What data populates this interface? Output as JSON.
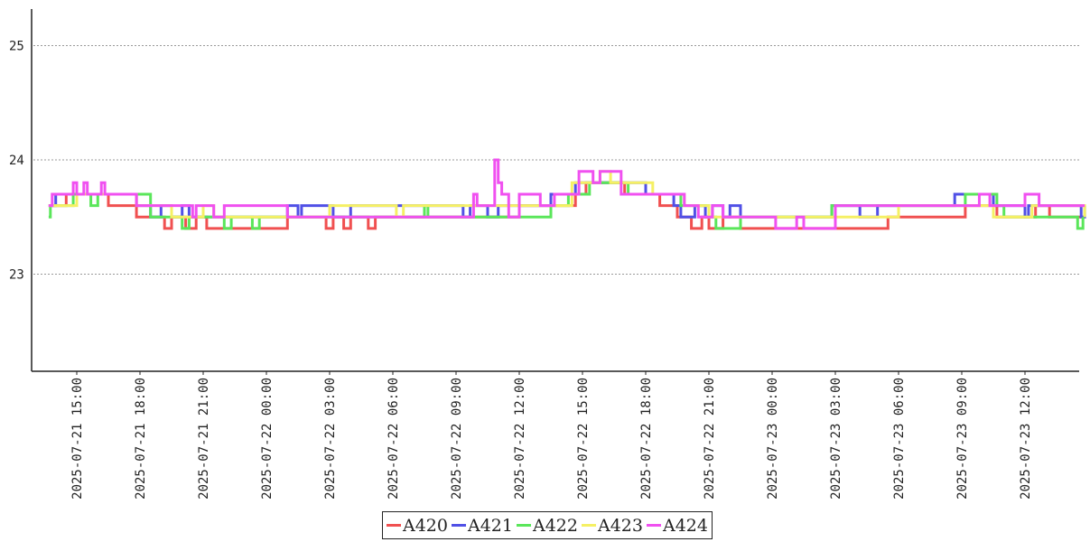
{
  "chart_data": {
    "type": "line",
    "title": "",
    "xlabel": "",
    "ylabel": "",
    "x_range": [
      "2025-07-21 13:40",
      "2025-07-23 14:55"
    ],
    "ylim": [
      22.15,
      25.3
    ],
    "y_ticks": [
      23,
      24,
      25
    ],
    "y_tick_labels": [
      "23",
      "24",
      "25"
    ],
    "x_ticks": [
      "2025-07-21 15:00",
      "2025-07-21 18:00",
      "2025-07-21 21:00",
      "2025-07-22 00:00",
      "2025-07-22 03:00",
      "2025-07-22 06:00",
      "2025-07-22 09:00",
      "2025-07-22 12:00",
      "2025-07-22 15:00",
      "2025-07-22 18:00",
      "2025-07-22 21:00",
      "2025-07-23 00:00",
      "2025-07-23 03:00",
      "2025-07-23 06:00",
      "2025-07-23 09:00",
      "2025-07-23 12:00"
    ],
    "x_tick_labels": [
      "2025-07-21  15:00",
      "2025-07-21  18:00",
      "2025-07-21  21:00",
      "2025-07-22  00:00",
      "2025-07-22  03:00",
      "2025-07-22  06:00",
      "2025-07-22  09:00",
      "2025-07-22  12:00",
      "2025-07-22  15:00",
      "2025-07-22  18:00",
      "2025-07-22  21:00",
      "2025-07-23  00:00",
      "2025-07-23  03:00",
      "2025-07-23  06:00",
      "2025-07-23  09:00",
      "2025-07-23  12:00"
    ],
    "grid": "horizontal dotted",
    "legend_position": "bottom-center",
    "series": [
      {
        "name": "A420",
        "color": "#f05050",
        "points": [
          [
            "2025-07-21 13:40",
            23.6
          ],
          [
            "2025-07-21 14:30",
            23.7
          ],
          [
            "2025-07-21 16:30",
            23.6
          ],
          [
            "2025-07-21 17:50",
            23.5
          ],
          [
            "2025-07-21 19:10",
            23.4
          ],
          [
            "2025-07-21 19:30",
            23.5
          ],
          [
            "2025-07-21 20:10",
            23.4
          ],
          [
            "2025-07-21 20:40",
            23.5
          ],
          [
            "2025-07-21 21:10",
            23.4
          ],
          [
            "2025-07-22 01:00",
            23.5
          ],
          [
            "2025-07-22 02:50",
            23.4
          ],
          [
            "2025-07-22 03:10",
            23.5
          ],
          [
            "2025-07-22 03:40",
            23.4
          ],
          [
            "2025-07-22 04:00",
            23.5
          ],
          [
            "2025-07-22 04:50",
            23.4
          ],
          [
            "2025-07-22 05:10",
            23.5
          ],
          [
            "2025-07-22 12:00",
            23.6
          ],
          [
            "2025-07-22 14:40",
            23.7
          ],
          [
            "2025-07-22 15:10",
            23.8
          ],
          [
            "2025-07-22 17:00",
            23.7
          ],
          [
            "2025-07-22 18:40",
            23.6
          ],
          [
            "2025-07-22 19:30",
            23.5
          ],
          [
            "2025-07-22 20:10",
            23.4
          ],
          [
            "2025-07-22 20:40",
            23.5
          ],
          [
            "2025-07-22 21:00",
            23.4
          ],
          [
            "2025-07-22 21:40",
            23.5
          ],
          [
            "2025-07-22 22:30",
            23.4
          ],
          [
            "2025-07-23 05:30",
            23.5
          ],
          [
            "2025-07-23 09:10",
            23.6
          ],
          [
            "2025-07-23 10:40",
            23.5
          ],
          [
            "2025-07-23 12:30",
            23.6
          ],
          [
            "2025-07-23 13:10",
            23.5
          ],
          [
            "2025-07-23 14:50",
            23.5
          ]
        ]
      },
      {
        "name": "A421",
        "color": "#5050e6",
        "points": [
          [
            "2025-07-21 13:40",
            23.6
          ],
          [
            "2025-07-21 14:00",
            23.7
          ],
          [
            "2025-07-21 17:50",
            23.6
          ],
          [
            "2025-07-21 18:30",
            23.5
          ],
          [
            "2025-07-21 19:00",
            23.6
          ],
          [
            "2025-07-21 19:30",
            23.5
          ],
          [
            "2025-07-21 20:00",
            23.6
          ],
          [
            "2025-07-21 20:20",
            23.5
          ],
          [
            "2025-07-22 01:00",
            23.6
          ],
          [
            "2025-07-22 01:30",
            23.5
          ],
          [
            "2025-07-22 01:40",
            23.6
          ],
          [
            "2025-07-22 03:10",
            23.5
          ],
          [
            "2025-07-22 04:00",
            23.6
          ],
          [
            "2025-07-22 09:20",
            23.5
          ],
          [
            "2025-07-22 09:40",
            23.6
          ],
          [
            "2025-07-22 10:30",
            23.5
          ],
          [
            "2025-07-22 11:00",
            23.6
          ],
          [
            "2025-07-22 13:30",
            23.7
          ],
          [
            "2025-07-22 14:40",
            23.8
          ],
          [
            "2025-07-22 18:00",
            23.7
          ],
          [
            "2025-07-22 19:20",
            23.6
          ],
          [
            "2025-07-22 19:40",
            23.5
          ],
          [
            "2025-07-22 20:20",
            23.6
          ],
          [
            "2025-07-22 20:50",
            23.5
          ],
          [
            "2025-07-22 21:10",
            23.6
          ],
          [
            "2025-07-22 21:40",
            23.5
          ],
          [
            "2025-07-22 22:00",
            23.6
          ],
          [
            "2025-07-22 22:30",
            23.5
          ],
          [
            "2025-07-23 02:50",
            23.6
          ],
          [
            "2025-07-23 04:10",
            23.5
          ],
          [
            "2025-07-23 05:00",
            23.6
          ],
          [
            "2025-07-23 08:40",
            23.7
          ],
          [
            "2025-07-23 10:30",
            23.6
          ],
          [
            "2025-07-23 12:00",
            23.5
          ],
          [
            "2025-07-23 12:10",
            23.6
          ],
          [
            "2025-07-23 14:40",
            23.5
          ],
          [
            "2025-07-23 14:50",
            23.6
          ]
        ]
      },
      {
        "name": "A422",
        "color": "#5ae65a",
        "points": [
          [
            "2025-07-21 13:40",
            23.5
          ],
          [
            "2025-07-21 13:45",
            23.6
          ],
          [
            "2025-07-21 14:50",
            23.7
          ],
          [
            "2025-07-21 15:40",
            23.6
          ],
          [
            "2025-07-21 16:00",
            23.7
          ],
          [
            "2025-07-21 18:30",
            23.5
          ],
          [
            "2025-07-21 20:00",
            23.4
          ],
          [
            "2025-07-21 20:20",
            23.5
          ],
          [
            "2025-07-21 22:00",
            23.4
          ],
          [
            "2025-07-21 22:20",
            23.5
          ],
          [
            "2025-07-21 23:20",
            23.4
          ],
          [
            "2025-07-21 23:40",
            23.5
          ],
          [
            "2025-07-22 07:30",
            23.6
          ],
          [
            "2025-07-22 07:40",
            23.5
          ],
          [
            "2025-07-22 09:00",
            23.5
          ],
          [
            "2025-07-22 13:00",
            23.5
          ],
          [
            "2025-07-22 13:30",
            23.6
          ],
          [
            "2025-07-22 14:20",
            23.7
          ],
          [
            "2025-07-22 15:20",
            23.8
          ],
          [
            "2025-07-22 17:10",
            23.7
          ],
          [
            "2025-07-22 19:40",
            23.6
          ],
          [
            "2025-07-22 21:00",
            23.5
          ],
          [
            "2025-07-22 21:20",
            23.4
          ],
          [
            "2025-07-22 22:30",
            23.5
          ],
          [
            "2025-07-23 02:50",
            23.6
          ],
          [
            "2025-07-23 09:10",
            23.7
          ],
          [
            "2025-07-23 10:40",
            23.6
          ],
          [
            "2025-07-23 11:00",
            23.5
          ],
          [
            "2025-07-23 14:30",
            23.4
          ],
          [
            "2025-07-23 14:45",
            23.5
          ]
        ]
      },
      {
        "name": "A423",
        "color": "#f5f064",
        "points": [
          [
            "2025-07-21 13:40",
            23.6
          ],
          [
            "2025-07-21 15:00",
            23.7
          ],
          [
            "2025-07-21 17:50",
            23.6
          ],
          [
            "2025-07-21 19:30",
            23.5
          ],
          [
            "2025-07-21 21:00",
            23.6
          ],
          [
            "2025-07-21 21:30",
            23.5
          ],
          [
            "2025-07-22 03:00",
            23.6
          ],
          [
            "2025-07-22 06:10",
            23.5
          ],
          [
            "2025-07-22 06:30",
            23.6
          ],
          [
            "2025-07-22 10:30",
            23.6
          ],
          [
            "2025-07-22 14:30",
            23.8
          ],
          [
            "2025-07-22 15:50",
            23.9
          ],
          [
            "2025-07-22 16:20",
            23.8
          ],
          [
            "2025-07-22 18:20",
            23.7
          ],
          [
            "2025-07-22 19:50",
            23.6
          ],
          [
            "2025-07-22 21:00",
            23.5
          ],
          [
            "2025-07-23 06:00",
            23.6
          ],
          [
            "2025-07-23 09:00",
            23.6
          ],
          [
            "2025-07-23 10:30",
            23.5
          ],
          [
            "2025-07-23 12:20",
            23.6
          ],
          [
            "2025-07-23 14:50",
            23.5
          ]
        ]
      },
      {
        "name": "A424",
        "color": "#f050f0",
        "points": [
          [
            "2025-07-21 13:40",
            23.6
          ],
          [
            "2025-07-21 13:50",
            23.7
          ],
          [
            "2025-07-21 14:20",
            23.7
          ],
          [
            "2025-07-21 14:50",
            23.8
          ],
          [
            "2025-07-21 15:00",
            23.7
          ],
          [
            "2025-07-21 15:20",
            23.8
          ],
          [
            "2025-07-21 15:30",
            23.7
          ],
          [
            "2025-07-21 16:10",
            23.8
          ],
          [
            "2025-07-21 16:20",
            23.7
          ],
          [
            "2025-07-21 17:50",
            23.6
          ],
          [
            "2025-07-21 20:30",
            23.5
          ],
          [
            "2025-07-21 20:40",
            23.6
          ],
          [
            "2025-07-21 21:30",
            23.5
          ],
          [
            "2025-07-21 22:00",
            23.6
          ],
          [
            "2025-07-22 01:00",
            23.5
          ],
          [
            "2025-07-22 09:50",
            23.7
          ],
          [
            "2025-07-22 10:00",
            23.6
          ],
          [
            "2025-07-22 10:50",
            24.0
          ],
          [
            "2025-07-22 11:00",
            23.8
          ],
          [
            "2025-07-22 11:10",
            23.7
          ],
          [
            "2025-07-22 11:30",
            23.5
          ],
          [
            "2025-07-22 12:00",
            23.7
          ],
          [
            "2025-07-22 13:00",
            23.6
          ],
          [
            "2025-07-22 13:40",
            23.7
          ],
          [
            "2025-07-22 14:50",
            23.9
          ],
          [
            "2025-07-22 15:30",
            23.8
          ],
          [
            "2025-07-22 15:50",
            23.9
          ],
          [
            "2025-07-22 16:50",
            23.7
          ],
          [
            "2025-07-22 19:50",
            23.6
          ],
          [
            "2025-07-22 20:30",
            23.5
          ],
          [
            "2025-07-22 21:10",
            23.6
          ],
          [
            "2025-07-22 21:40",
            23.5
          ],
          [
            "2025-07-23 00:10",
            23.4
          ],
          [
            "2025-07-23 01:10",
            23.5
          ],
          [
            "2025-07-23 01:30",
            23.4
          ],
          [
            "2025-07-23 03:00",
            23.6
          ],
          [
            "2025-07-23 09:50",
            23.7
          ],
          [
            "2025-07-23 10:20",
            23.6
          ],
          [
            "2025-07-23 12:00",
            23.7
          ],
          [
            "2025-07-23 12:40",
            23.6
          ],
          [
            "2025-07-23 14:50",
            23.6
          ]
        ]
      }
    ]
  }
}
